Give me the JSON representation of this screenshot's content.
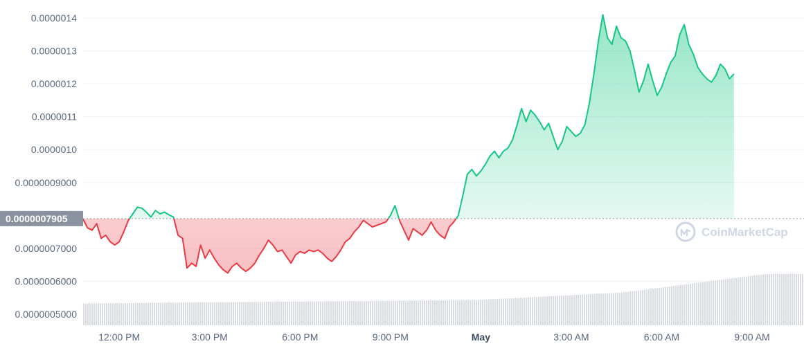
{
  "colors": {
    "up": "#16c784",
    "down": "#ea3943",
    "reference": "#8a939f",
    "volume": "#d9dce1",
    "grid": "#eff2f5",
    "watermark": "#cfd6e4"
  },
  "watermark": {
    "brand": "CoinMarketCap",
    "icon": "coinmarketcap-logo-icon"
  },
  "reference_price": {
    "label": "0.0000007905"
  },
  "chart_data": {
    "type": "area",
    "reference_value": 7.905e-07,
    "ylim": [
      4.6e-07,
      1.42e-06
    ],
    "x_range_hours": [
      0,
      23.9
    ],
    "y_ticks": [
      {
        "value": 1.4e-06,
        "label": "0.0000014"
      },
      {
        "value": 1.3e-06,
        "label": "0.0000013"
      },
      {
        "value": 1.2e-06,
        "label": "0.0000012"
      },
      {
        "value": 1.1e-06,
        "label": "0.0000011"
      },
      {
        "value": 1e-06,
        "label": "0.0000010"
      },
      {
        "value": 9e-07,
        "label": "0.0000009000"
      },
      {
        "value": 7e-07,
        "label": "0.0000007000"
      },
      {
        "value": 6e-07,
        "label": "0.0000006000"
      },
      {
        "value": 5e-07,
        "label": "0.0000005000"
      }
    ],
    "x_ticks": [
      {
        "hour": 1.2,
        "label": "12:00 PM",
        "bold": false
      },
      {
        "hour": 4.2,
        "label": "3:00 PM",
        "bold": false
      },
      {
        "hour": 7.2,
        "label": "6:00 PM",
        "bold": false
      },
      {
        "hour": 10.2,
        "label": "9:00 PM",
        "bold": false
      },
      {
        "hour": 13.2,
        "label": "May",
        "bold": true
      },
      {
        "hour": 16.2,
        "label": "3:00 AM",
        "bold": false
      },
      {
        "hour": 19.2,
        "label": "6:00 AM",
        "bold": false
      },
      {
        "hour": 22.2,
        "label": "9:00 AM",
        "bold": false
      }
    ],
    "price_series": [
      [
        0.0,
        7.88
      ],
      [
        0.15,
        7.62
      ],
      [
        0.3,
        7.55
      ],
      [
        0.45,
        7.75
      ],
      [
        0.6,
        7.3
      ],
      [
        0.75,
        7.4
      ],
      [
        0.9,
        7.2
      ],
      [
        1.05,
        7.1
      ],
      [
        1.2,
        7.2
      ],
      [
        1.35,
        7.5
      ],
      [
        1.5,
        7.85
      ],
      [
        1.65,
        8.05
      ],
      [
        1.8,
        8.25
      ],
      [
        1.95,
        8.22
      ],
      [
        2.1,
        8.1
      ],
      [
        2.25,
        7.95
      ],
      [
        2.4,
        8.15
      ],
      [
        2.55,
        8.05
      ],
      [
        2.7,
        8.1
      ],
      [
        2.85,
        8.02
      ],
      [
        3.0,
        7.95
      ],
      [
        3.15,
        7.4
      ],
      [
        3.3,
        7.3
      ],
      [
        3.45,
        6.4
      ],
      [
        3.6,
        6.55
      ],
      [
        3.75,
        6.45
      ],
      [
        3.9,
        7.1
      ],
      [
        4.05,
        6.7
      ],
      [
        4.2,
        6.95
      ],
      [
        4.35,
        6.7
      ],
      [
        4.5,
        6.5
      ],
      [
        4.65,
        6.35
      ],
      [
        4.8,
        6.25
      ],
      [
        4.95,
        6.45
      ],
      [
        5.1,
        6.55
      ],
      [
        5.25,
        6.4
      ],
      [
        5.4,
        6.3
      ],
      [
        5.55,
        6.4
      ],
      [
        5.7,
        6.55
      ],
      [
        5.85,
        6.8
      ],
      [
        6.0,
        7.0
      ],
      [
        6.15,
        7.25
      ],
      [
        6.3,
        7.1
      ],
      [
        6.45,
        6.9
      ],
      [
        6.6,
        6.95
      ],
      [
        6.75,
        6.75
      ],
      [
        6.9,
        6.55
      ],
      [
        7.05,
        6.8
      ],
      [
        7.2,
        6.9
      ],
      [
        7.35,
        6.85
      ],
      [
        7.5,
        6.95
      ],
      [
        7.65,
        6.9
      ],
      [
        7.8,
        6.95
      ],
      [
        7.95,
        6.85
      ],
      [
        8.1,
        6.7
      ],
      [
        8.25,
        6.6
      ],
      [
        8.4,
        6.75
      ],
      [
        8.55,
        6.95
      ],
      [
        8.7,
        7.2
      ],
      [
        8.85,
        7.3
      ],
      [
        9.0,
        7.5
      ],
      [
        9.15,
        7.65
      ],
      [
        9.3,
        7.85
      ],
      [
        9.45,
        7.75
      ],
      [
        9.6,
        7.65
      ],
      [
        9.75,
        7.7
      ],
      [
        9.9,
        7.75
      ],
      [
        10.05,
        7.8
      ],
      [
        10.2,
        8.0
      ],
      [
        10.35,
        8.3
      ],
      [
        10.5,
        7.85
      ],
      [
        10.65,
        7.55
      ],
      [
        10.8,
        7.25
      ],
      [
        10.95,
        7.6
      ],
      [
        11.1,
        7.5
      ],
      [
        11.25,
        7.4
      ],
      [
        11.4,
        7.55
      ],
      [
        11.55,
        7.8
      ],
      [
        11.7,
        7.55
      ],
      [
        11.85,
        7.4
      ],
      [
        12.0,
        7.3
      ],
      [
        12.15,
        7.65
      ],
      [
        12.3,
        7.8
      ],
      [
        12.45,
        8.0
      ],
      [
        12.6,
        8.6
      ],
      [
        12.75,
        9.25
      ],
      [
        12.9,
        9.4
      ],
      [
        13.05,
        9.2
      ],
      [
        13.2,
        9.35
      ],
      [
        13.35,
        9.55
      ],
      [
        13.5,
        9.8
      ],
      [
        13.65,
        9.95
      ],
      [
        13.8,
        9.75
      ],
      [
        13.95,
        9.95
      ],
      [
        14.1,
        10.05
      ],
      [
        14.25,
        10.3
      ],
      [
        14.4,
        10.75
      ],
      [
        14.55,
        11.25
      ],
      [
        14.7,
        10.85
      ],
      [
        14.85,
        11.2
      ],
      [
        15.0,
        11.05
      ],
      [
        15.15,
        10.85
      ],
      [
        15.3,
        10.6
      ],
      [
        15.45,
        10.8
      ],
      [
        15.6,
        10.4
      ],
      [
        15.75,
        10.0
      ],
      [
        15.9,
        10.25
      ],
      [
        16.05,
        10.7
      ],
      [
        16.2,
        10.55
      ],
      [
        16.35,
        10.4
      ],
      [
        16.5,
        10.5
      ],
      [
        16.65,
        10.75
      ],
      [
        16.8,
        11.4
      ],
      [
        16.95,
        12.3
      ],
      [
        17.1,
        13.3
      ],
      [
        17.25,
        14.1
      ],
      [
        17.4,
        13.4
      ],
      [
        17.55,
        13.2
      ],
      [
        17.7,
        13.75
      ],
      [
        17.85,
        13.4
      ],
      [
        18.0,
        13.3
      ],
      [
        18.15,
        13.0
      ],
      [
        18.3,
        12.4
      ],
      [
        18.45,
        11.75
      ],
      [
        18.6,
        12.1
      ],
      [
        18.75,
        12.6
      ],
      [
        18.9,
        12.1
      ],
      [
        19.05,
        11.65
      ],
      [
        19.2,
        11.9
      ],
      [
        19.35,
        12.3
      ],
      [
        19.5,
        12.65
      ],
      [
        19.65,
        12.85
      ],
      [
        19.8,
        13.5
      ],
      [
        19.95,
        13.8
      ],
      [
        20.1,
        13.2
      ],
      [
        20.25,
        12.9
      ],
      [
        20.4,
        12.5
      ],
      [
        20.55,
        12.3
      ],
      [
        20.7,
        12.15
      ],
      [
        20.85,
        12.05
      ],
      [
        21.0,
        12.25
      ],
      [
        21.15,
        12.6
      ],
      [
        21.3,
        12.45
      ],
      [
        21.45,
        12.15
      ],
      [
        21.6,
        12.3
      ]
    ],
    "volume_series_start_end": [
      5.325e-07,
      6.225e-07
    ]
  }
}
